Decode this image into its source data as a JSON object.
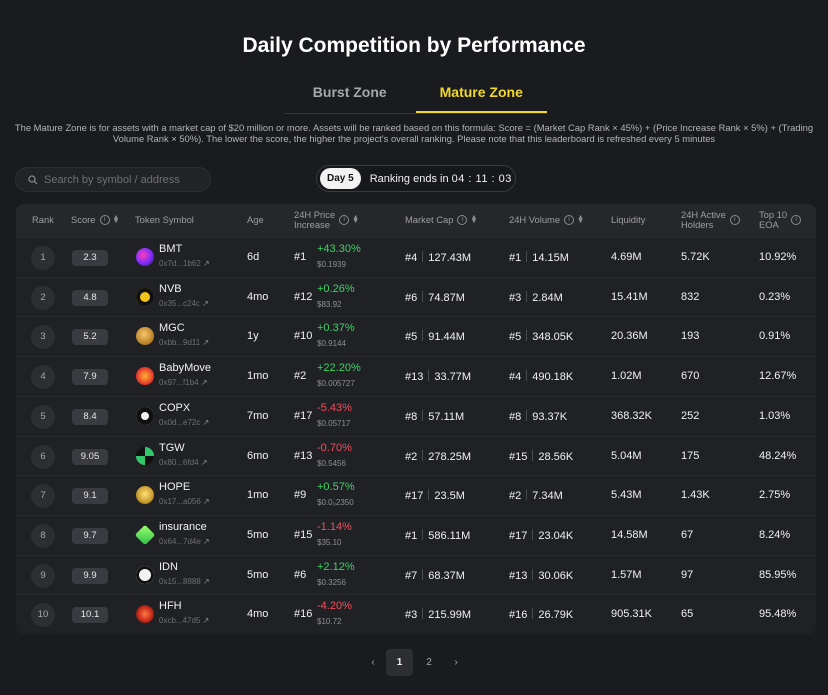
{
  "page": {
    "title": "Daily Competition by Performance",
    "tabs": [
      {
        "label": "Burst Zone",
        "active": false
      },
      {
        "label": "Mature Zone",
        "active": true
      }
    ],
    "description": "The Mature Zone is for assets with a market cap of $20 million or more. Assets will be ranked based on this formula: Score = (Market Cap Rank × 45%) + (Price Increase Rank × 5%) + (Trading Volume Rank × 50%). The lower the score, the higher the project's overall ranking. Please note that this leaderboard is refreshed every 5 minutes"
  },
  "search": {
    "placeholder": "Search by symbol / address"
  },
  "status": {
    "day": "Day 5",
    "ends_label": "Ranking ends in",
    "ends_time": "04 : 11 : 03"
  },
  "table": {
    "headers": {
      "rank": "Rank",
      "score": "Score",
      "token": "Token Symbol",
      "age": "Age",
      "price_l1": "24H Price",
      "price_l2": "Increase",
      "mcap": "Market Cap",
      "volume": "24H Volume",
      "liquidity": "Liquidity",
      "holders_l1": "24H Active",
      "holders_l2": "Holders",
      "eoa_l1": "Top 10",
      "eoa_l2": "EOA"
    },
    "rows": [
      {
        "rank": "1",
        "score": "2.3",
        "symbol": "BMT",
        "address": "0x7d...1b62",
        "age": "6d",
        "price_rank": "#1",
        "change": "+43.30%",
        "price": "$0.1939",
        "mcap_rank": "#4",
        "mcap": "127.43M",
        "vol_rank": "#1",
        "volume": "14.15M",
        "liquidity": "4.69M",
        "holders": "5.72K",
        "eoa": "10.92%"
      },
      {
        "rank": "2",
        "score": "4.8",
        "symbol": "NVB",
        "address": "0x35...c24c",
        "age": "4mo",
        "price_rank": "#12",
        "change": "+0.26%",
        "price": "$83.92",
        "mcap_rank": "#6",
        "mcap": "74.87M",
        "vol_rank": "#3",
        "volume": "2.84M",
        "liquidity": "15.41M",
        "holders": "832",
        "eoa": "0.23%"
      },
      {
        "rank": "3",
        "score": "5.2",
        "symbol": "MGC",
        "address": "0xbb...9d11",
        "age": "1y",
        "price_rank": "#10",
        "change": "+0.37%",
        "price": "$0.9144",
        "mcap_rank": "#5",
        "mcap": "91.44M",
        "vol_rank": "#5",
        "volume": "348.05K",
        "liquidity": "20.36M",
        "holders": "193",
        "eoa": "0.91%"
      },
      {
        "rank": "4",
        "score": "7.9",
        "symbol": "BabyMove",
        "address": "0x97...f1b4",
        "age": "1mo",
        "price_rank": "#2",
        "change": "+22.20%",
        "price": "$0.005727",
        "mcap_rank": "#13",
        "mcap": "33.77M",
        "vol_rank": "#4",
        "volume": "490.18K",
        "liquidity": "1.02M",
        "holders": "670",
        "eoa": "12.67%"
      },
      {
        "rank": "5",
        "score": "8.4",
        "symbol": "COPX",
        "address": "0x0d...e72c",
        "age": "7mo",
        "price_rank": "#17",
        "change": "-5.43%",
        "price": "$0.05717",
        "mcap_rank": "#8",
        "mcap": "57.11M",
        "vol_rank": "#8",
        "volume": "93.37K",
        "liquidity": "368.32K",
        "holders": "252",
        "eoa": "1.03%"
      },
      {
        "rank": "6",
        "score": "9.05",
        "symbol": "TGW",
        "address": "0x80...6fd4",
        "age": "6mo",
        "price_rank": "#13",
        "change": "-0.70%",
        "price": "$0.5456",
        "mcap_rank": "#2",
        "mcap": "278.25M",
        "vol_rank": "#15",
        "volume": "28.56K",
        "liquidity": "5.04M",
        "holders": "175",
        "eoa": "48.24%"
      },
      {
        "rank": "7",
        "score": "9.1",
        "symbol": "HOPE",
        "address": "0x17...a056",
        "age": "1mo",
        "price_rank": "#9",
        "change": "+0.57%",
        "price": "$0.0₀2350",
        "mcap_rank": "#17",
        "mcap": "23.5M",
        "vol_rank": "#2",
        "volume": "7.34M",
        "liquidity": "5.43M",
        "holders": "1.43K",
        "eoa": "2.75%"
      },
      {
        "rank": "8",
        "score": "9.7",
        "symbol": "insurance",
        "address": "0x64...7d4e",
        "age": "5mo",
        "price_rank": "#15",
        "change": "-1.14%",
        "price": "$35.10",
        "mcap_rank": "#1",
        "mcap": "586.11M",
        "vol_rank": "#17",
        "volume": "23.04K",
        "liquidity": "14.58M",
        "holders": "67",
        "eoa": "8.24%"
      },
      {
        "rank": "9",
        "score": "9.9",
        "symbol": "IDN",
        "address": "0x15...8888",
        "age": "5mo",
        "price_rank": "#6",
        "change": "+2.12%",
        "price": "$0.3256",
        "mcap_rank": "#7",
        "mcap": "68.37M",
        "vol_rank": "#13",
        "volume": "30.06K",
        "liquidity": "1.57M",
        "holders": "97",
        "eoa": "85.95%"
      },
      {
        "rank": "10",
        "score": "10.1",
        "symbol": "HFH",
        "address": "0xcb...47d5",
        "age": "4mo",
        "price_rank": "#16",
        "change": "-4.20%",
        "price": "$10.72",
        "mcap_rank": "#3",
        "mcap": "215.99M",
        "vol_rank": "#16",
        "volume": "26.79K",
        "liquidity": "905.31K",
        "holders": "65",
        "eoa": "95.48%"
      }
    ]
  },
  "pagination": {
    "pages": [
      "1",
      "2"
    ],
    "current": "1",
    "prev": "‹",
    "next": "›"
  },
  "colors": {
    "accent": "#f3d92b",
    "positive": "#3fd166",
    "negative": "#f0505e"
  },
  "icons": [
    "search-icon",
    "info-icon",
    "sort-icon",
    "external-link-icon",
    "chevron-left-icon",
    "chevron-right-icon"
  ]
}
